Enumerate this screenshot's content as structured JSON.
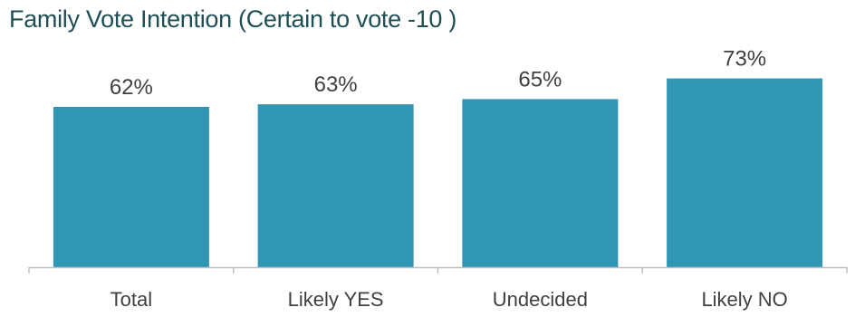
{
  "chart_data": {
    "type": "bar",
    "title": "Family Vote Intention (Certain to vote -10 )",
    "categories": [
      "Total",
      "Likely YES",
      "Undecided",
      "Likely NO"
    ],
    "values": [
      62,
      63,
      65,
      73
    ],
    "value_labels": [
      "62%",
      "63%",
      "65%",
      "73%"
    ],
    "xlabel": "",
    "ylabel": "",
    "ylim": [
      0,
      76
    ],
    "grid": false,
    "legend": "none",
    "bar_color": "#3196b3",
    "axis_color": "#bfbfbf"
  }
}
